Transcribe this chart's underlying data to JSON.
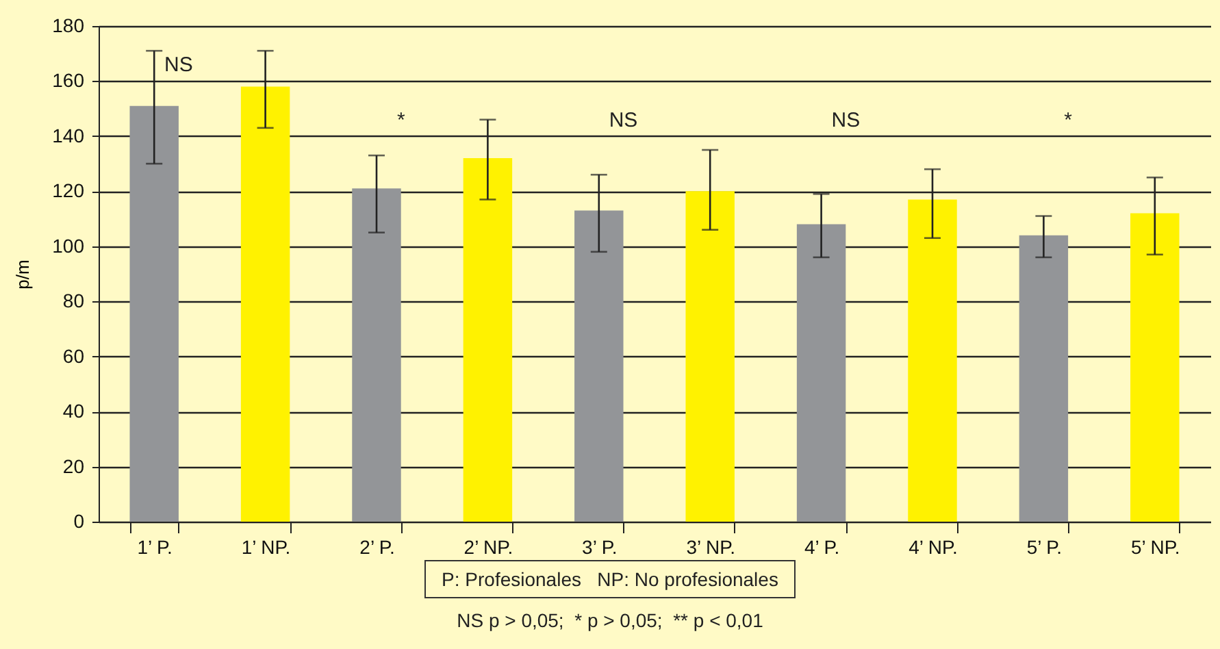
{
  "chart_data": {
    "type": "bar",
    "ylabel": "p/m",
    "categories": [
      "1’ P.",
      "1’ NP.",
      "2’ P.",
      "2’ NP.",
      "3’ P.",
      "3’ NP.",
      "4’ P.",
      "4’ NP.",
      "5’ P.",
      "5’ NP."
    ],
    "values": [
      151,
      158,
      121,
      132,
      113,
      120,
      108,
      117,
      104,
      112
    ],
    "colors": [
      "#939598",
      "#fff200",
      "#939598",
      "#fff200",
      "#939598",
      "#fff200",
      "#939598",
      "#fff200",
      "#939598",
      "#fff200"
    ],
    "errors": [
      [
        130,
        171
      ],
      [
        143,
        171
      ],
      [
        105,
        133
      ],
      [
        117,
        146
      ],
      [
        98,
        126
      ],
      [
        106,
        135
      ],
      [
        96,
        119
      ],
      [
        103,
        128
      ],
      [
        96,
        111
      ],
      [
        97,
        125
      ]
    ],
    "ylim": [
      0,
      180
    ],
    "yticks": [
      0,
      20,
      40,
      60,
      80,
      100,
      120,
      140,
      160,
      180
    ],
    "grid": "y",
    "annotations": [
      "NS",
      "*",
      "NS",
      "NS",
      "*",
      "P: Profesionales   NP: No profesionales",
      "NS p > 0,05;  * p > 0,05;  ** p < 0,01"
    ]
  }
}
